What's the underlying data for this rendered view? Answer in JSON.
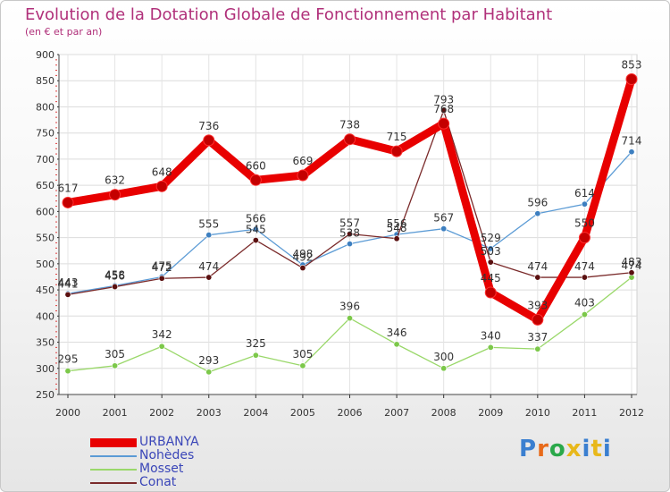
{
  "chart_data": {
    "type": "line",
    "title": "Evolution de la Dotation Globale de Fonctionnement par Habitant",
    "subtitle": "(en € et par an)",
    "x": [
      "2000",
      "2001",
      "2002",
      "2003",
      "2004",
      "2005",
      "2006",
      "2007",
      "2008",
      "2009",
      "2010",
      "2011",
      "2012"
    ],
    "ylim": [
      250,
      900
    ],
    "yticks": [
      250,
      300,
      350,
      400,
      450,
      500,
      550,
      600,
      650,
      700,
      750,
      800,
      850,
      900
    ],
    "grid": true,
    "legend_position": "bottom-left",
    "series": [
      {
        "name": "URBANYA",
        "color": "#e80000",
        "marker": "#c40000",
        "values": [
          617,
          632,
          648,
          736,
          660,
          669,
          738,
          715,
          768,
          445,
          393,
          550,
          853
        ],
        "labels": [
          "617",
          "632",
          "648",
          "736",
          "660",
          "669",
          "738",
          "715",
          "768",
          "445",
          "393",
          "550",
          "853"
        ]
      },
      {
        "name": "Nohèdes",
        "color": "#5b9bd5",
        "marker": "#3d7fc0",
        "values": [
          443,
          458,
          475,
          555,
          566,
          498,
          538,
          556,
          567,
          529,
          596,
          614,
          714
        ],
        "labels": [
          "443",
          "458",
          "475",
          "555",
          "566",
          "498",
          "538",
          "556",
          "567",
          "529",
          "596",
          "614",
          "714"
        ]
      },
      {
        "name": "Mosset",
        "color": "#9ad86a",
        "marker": "#7cc84a",
        "values": [
          295,
          305,
          342,
          293,
          325,
          305,
          396,
          346,
          300,
          340,
          337,
          403,
          474
        ],
        "labels": [
          "295",
          "305",
          "342",
          "293",
          "325",
          "305",
          "396",
          "346",
          "300",
          "340",
          "337",
          "403",
          "474"
        ]
      },
      {
        "name": "Conat",
        "color": "#7a2a2a",
        "marker": "#5a1010",
        "values": [
          441,
          456,
          472,
          474,
          545,
          492,
          557,
          548,
          793,
          503,
          474,
          474,
          483
        ],
        "labels": [
          "441",
          "456",
          "472",
          "474",
          "545",
          "492",
          "557",
          "548",
          "793",
          "503",
          "474",
          "474",
          "483"
        ]
      }
    ]
  },
  "logo": {
    "text": "Proxiti"
  }
}
